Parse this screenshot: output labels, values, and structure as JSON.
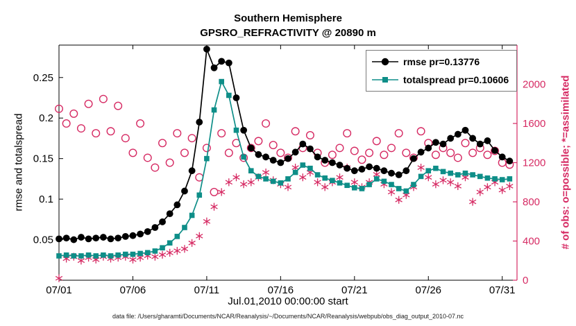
{
  "colors": {
    "rmse": "#000000",
    "totalspread": "#0e8e88",
    "obs": "#d62a63",
    "background": "#ffffff"
  },
  "chart_data": {
    "type": "line",
    "title": "Southern Hemisphere",
    "subtitle": "GPSRO_REFRACTIVITY @ 20890 m",
    "xlabel": "Jul.01,2010 00:00:00 start",
    "ylabel_left": "rmse and totalspread",
    "ylabel_right": "# of obs: o=possible; *=assimilated",
    "caption": "data file: /Users/gharamti/Documents/NCAR/Reanalysis/~/Documents/NCAR/Reanalysis/webpub/obs_diag_output_2010-07.nc",
    "legend_position": "top-right",
    "grid": false,
    "xlim": [
      1,
      32
    ],
    "ylim_left": [
      0,
      0.29
    ],
    "ylim_right": [
      0,
      2400
    ],
    "xticks": [
      1,
      6,
      11,
      16,
      21,
      26,
      31
    ],
    "xtick_labels": [
      "07/01",
      "07/06",
      "07/11",
      "07/16",
      "07/21",
      "07/26",
      "07/31"
    ],
    "yticks_left": [
      0.05,
      0.1,
      0.15,
      0.2,
      0.25
    ],
    "ytick_labels_left": [
      "0.05",
      "0.1",
      "0.15",
      "0.2",
      "0.25"
    ],
    "yticks_right": [
      0,
      400,
      800,
      1200,
      1600,
      2000
    ],
    "ytick_labels_right": [
      "0",
      "400",
      "800",
      "1200",
      "1600",
      "2000"
    ],
    "x": [
      1,
      1.5,
      2,
      2.5,
      3,
      3.5,
      4,
      4.5,
      5,
      5.5,
      6,
      6.5,
      7,
      7.5,
      8,
      8.5,
      9,
      9.5,
      10,
      10.5,
      11,
      11.5,
      12,
      12.5,
      13,
      13.5,
      14,
      14.5,
      15,
      15.5,
      16,
      16.5,
      17,
      17.5,
      18,
      18.5,
      19,
      19.5,
      20,
      20.5,
      21,
      21.5,
      22,
      22.5,
      23,
      23.5,
      24,
      24.5,
      25,
      25.5,
      26,
      26.5,
      27,
      27.5,
      28,
      28.5,
      29,
      29.5,
      30,
      30.5,
      31,
      31.5
    ],
    "series": [
      {
        "name": "rmse pr=0.13776",
        "axis": "left",
        "color": "#000000",
        "marker": "circle-filled",
        "values": [
          0.051,
          0.052,
          0.05,
          0.053,
          0.051,
          0.052,
          0.053,
          0.051,
          0.052,
          0.054,
          0.055,
          0.057,
          0.06,
          0.065,
          0.072,
          0.082,
          0.093,
          0.11,
          0.135,
          0.195,
          0.285,
          0.262,
          0.27,
          0.268,
          0.225,
          0.185,
          0.163,
          0.155,
          0.152,
          0.148,
          0.145,
          0.15,
          0.158,
          0.168,
          0.162,
          0.152,
          0.148,
          0.145,
          0.142,
          0.138,
          0.135,
          0.137,
          0.14,
          0.138,
          0.135,
          0.132,
          0.13,
          0.135,
          0.15,
          0.158,
          0.163,
          0.17,
          0.168,
          0.175,
          0.18,
          0.185,
          0.175,
          0.168,
          0.172,
          0.16,
          0.152,
          0.147
        ]
      },
      {
        "name": "totalspread pr=0.10606",
        "axis": "left",
        "color": "#0e8e88",
        "marker": "square-filled",
        "values": [
          0.03,
          0.031,
          0.03,
          0.03,
          0.031,
          0.03,
          0.031,
          0.03,
          0.031,
          0.032,
          0.032,
          0.033,
          0.034,
          0.036,
          0.04,
          0.046,
          0.054,
          0.065,
          0.08,
          0.105,
          0.15,
          0.21,
          0.245,
          0.228,
          0.185,
          0.152,
          0.135,
          0.128,
          0.125,
          0.122,
          0.12,
          0.125,
          0.133,
          0.142,
          0.138,
          0.13,
          0.126,
          0.123,
          0.12,
          0.117,
          0.114,
          0.113,
          0.118,
          0.125,
          0.122,
          0.118,
          0.113,
          0.11,
          0.118,
          0.128,
          0.135,
          0.138,
          0.134,
          0.132,
          0.13,
          0.132,
          0.13,
          0.128,
          0.126,
          0.125,
          0.124,
          0.125
        ]
      },
      {
        "name": "possible",
        "axis": "right",
        "color": "#d62a63",
        "marker": "circle-open",
        "values": [
          1750,
          1600,
          1700,
          1550,
          1800,
          1500,
          1850,
          1520,
          1780,
          1450,
          1300,
          1600,
          1250,
          1150,
          1400,
          1200,
          1500,
          1300,
          1450,
          1050,
          1350,
          900,
          1500,
          1300,
          1400,
          1250,
          1350,
          1420,
          1600,
          1380,
          1300,
          1250,
          1520,
          1350,
          1480,
          1300,
          1200,
          1280,
          1350,
          1500,
          1320,
          1230,
          1300,
          1420,
          1280,
          1350,
          1500,
          1300,
          1250,
          1520,
          1400,
          1280,
          1350,
          1300,
          1250,
          1400,
          1300,
          1350,
          1280,
          1320,
          1200,
          1180
        ]
      },
      {
        "name": "assimilated",
        "axis": "right",
        "color": "#d62a63",
        "marker": "asterisk",
        "values": [
          20,
          220,
          240,
          200,
          230,
          210,
          240,
          220,
          230,
          240,
          210,
          230,
          250,
          240,
          260,
          280,
          300,
          320,
          380,
          450,
          600,
          750,
          900,
          1000,
          1050,
          980,
          1000,
          1050,
          1100,
          1020,
          980,
          950,
          1150,
          1050,
          1100,
          1000,
          950,
          1000,
          1050,
          1150,
          1000,
          950,
          1000,
          1080,
          980,
          900,
          820,
          870,
          950,
          1150,
          1050,
          980,
          1020,
          1000,
          960,
          1050,
          800,
          900,
          950,
          1000,
          920,
          960
        ]
      }
    ],
    "legend_entries": [
      {
        "label": "rmse pr=0.13776"
      },
      {
        "label": "totalspread pr=0.10606"
      }
    ]
  }
}
